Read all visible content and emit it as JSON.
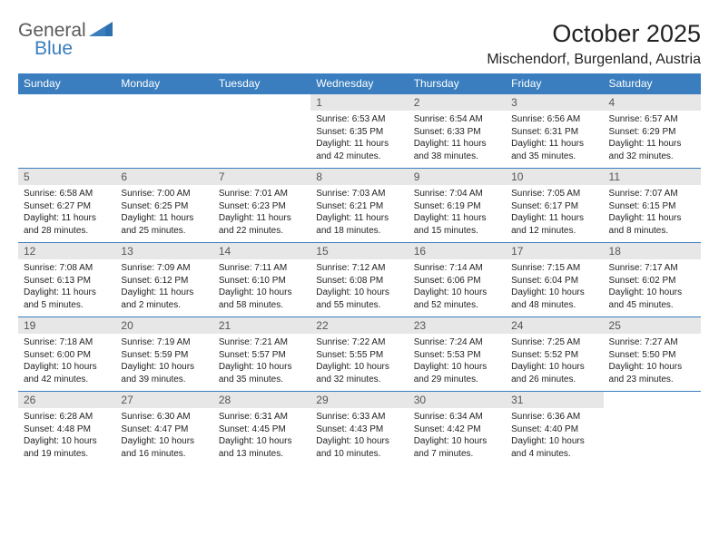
{
  "logo": {
    "general": "General",
    "blue": "Blue"
  },
  "title": "October 2025",
  "location": "Mischendorf, Burgenland, Austria",
  "colors": {
    "header_bg": "#3a7ebf",
    "header_text": "#ffffff",
    "daynum_bg": "#e7e7e7",
    "daynum_text": "#555555",
    "body_text": "#222222",
    "page_bg": "#ffffff"
  },
  "typography": {
    "title_fontsize": 27,
    "location_fontsize": 16,
    "weekday_fontsize": 12,
    "daynum_fontsize": 12,
    "cell_fontsize": 10
  },
  "weekdays": [
    "Sunday",
    "Monday",
    "Tuesday",
    "Wednesday",
    "Thursday",
    "Friday",
    "Saturday"
  ],
  "weeks": [
    {
      "nums": [
        "",
        "",
        "",
        "1",
        "2",
        "3",
        "4"
      ],
      "cells": [
        null,
        null,
        null,
        {
          "sunrise": "Sunrise: 6:53 AM",
          "sunset": "Sunset: 6:35 PM",
          "d1": "Daylight: 11 hours",
          "d2": "and 42 minutes."
        },
        {
          "sunrise": "Sunrise: 6:54 AM",
          "sunset": "Sunset: 6:33 PM",
          "d1": "Daylight: 11 hours",
          "d2": "and 38 minutes."
        },
        {
          "sunrise": "Sunrise: 6:56 AM",
          "sunset": "Sunset: 6:31 PM",
          "d1": "Daylight: 11 hours",
          "d2": "and 35 minutes."
        },
        {
          "sunrise": "Sunrise: 6:57 AM",
          "sunset": "Sunset: 6:29 PM",
          "d1": "Daylight: 11 hours",
          "d2": "and 32 minutes."
        }
      ]
    },
    {
      "nums": [
        "5",
        "6",
        "7",
        "8",
        "9",
        "10",
        "11"
      ],
      "cells": [
        {
          "sunrise": "Sunrise: 6:58 AM",
          "sunset": "Sunset: 6:27 PM",
          "d1": "Daylight: 11 hours",
          "d2": "and 28 minutes."
        },
        {
          "sunrise": "Sunrise: 7:00 AM",
          "sunset": "Sunset: 6:25 PM",
          "d1": "Daylight: 11 hours",
          "d2": "and 25 minutes."
        },
        {
          "sunrise": "Sunrise: 7:01 AM",
          "sunset": "Sunset: 6:23 PM",
          "d1": "Daylight: 11 hours",
          "d2": "and 22 minutes."
        },
        {
          "sunrise": "Sunrise: 7:03 AM",
          "sunset": "Sunset: 6:21 PM",
          "d1": "Daylight: 11 hours",
          "d2": "and 18 minutes."
        },
        {
          "sunrise": "Sunrise: 7:04 AM",
          "sunset": "Sunset: 6:19 PM",
          "d1": "Daylight: 11 hours",
          "d2": "and 15 minutes."
        },
        {
          "sunrise": "Sunrise: 7:05 AM",
          "sunset": "Sunset: 6:17 PM",
          "d1": "Daylight: 11 hours",
          "d2": "and 12 minutes."
        },
        {
          "sunrise": "Sunrise: 7:07 AM",
          "sunset": "Sunset: 6:15 PM",
          "d1": "Daylight: 11 hours",
          "d2": "and 8 minutes."
        }
      ]
    },
    {
      "nums": [
        "12",
        "13",
        "14",
        "15",
        "16",
        "17",
        "18"
      ],
      "cells": [
        {
          "sunrise": "Sunrise: 7:08 AM",
          "sunset": "Sunset: 6:13 PM",
          "d1": "Daylight: 11 hours",
          "d2": "and 5 minutes."
        },
        {
          "sunrise": "Sunrise: 7:09 AM",
          "sunset": "Sunset: 6:12 PM",
          "d1": "Daylight: 11 hours",
          "d2": "and 2 minutes."
        },
        {
          "sunrise": "Sunrise: 7:11 AM",
          "sunset": "Sunset: 6:10 PM",
          "d1": "Daylight: 10 hours",
          "d2": "and 58 minutes."
        },
        {
          "sunrise": "Sunrise: 7:12 AM",
          "sunset": "Sunset: 6:08 PM",
          "d1": "Daylight: 10 hours",
          "d2": "and 55 minutes."
        },
        {
          "sunrise": "Sunrise: 7:14 AM",
          "sunset": "Sunset: 6:06 PM",
          "d1": "Daylight: 10 hours",
          "d2": "and 52 minutes."
        },
        {
          "sunrise": "Sunrise: 7:15 AM",
          "sunset": "Sunset: 6:04 PM",
          "d1": "Daylight: 10 hours",
          "d2": "and 48 minutes."
        },
        {
          "sunrise": "Sunrise: 7:17 AM",
          "sunset": "Sunset: 6:02 PM",
          "d1": "Daylight: 10 hours",
          "d2": "and 45 minutes."
        }
      ]
    },
    {
      "nums": [
        "19",
        "20",
        "21",
        "22",
        "23",
        "24",
        "25"
      ],
      "cells": [
        {
          "sunrise": "Sunrise: 7:18 AM",
          "sunset": "Sunset: 6:00 PM",
          "d1": "Daylight: 10 hours",
          "d2": "and 42 minutes."
        },
        {
          "sunrise": "Sunrise: 7:19 AM",
          "sunset": "Sunset: 5:59 PM",
          "d1": "Daylight: 10 hours",
          "d2": "and 39 minutes."
        },
        {
          "sunrise": "Sunrise: 7:21 AM",
          "sunset": "Sunset: 5:57 PM",
          "d1": "Daylight: 10 hours",
          "d2": "and 35 minutes."
        },
        {
          "sunrise": "Sunrise: 7:22 AM",
          "sunset": "Sunset: 5:55 PM",
          "d1": "Daylight: 10 hours",
          "d2": "and 32 minutes."
        },
        {
          "sunrise": "Sunrise: 7:24 AM",
          "sunset": "Sunset: 5:53 PM",
          "d1": "Daylight: 10 hours",
          "d2": "and 29 minutes."
        },
        {
          "sunrise": "Sunrise: 7:25 AM",
          "sunset": "Sunset: 5:52 PM",
          "d1": "Daylight: 10 hours",
          "d2": "and 26 minutes."
        },
        {
          "sunrise": "Sunrise: 7:27 AM",
          "sunset": "Sunset: 5:50 PM",
          "d1": "Daylight: 10 hours",
          "d2": "and 23 minutes."
        }
      ]
    },
    {
      "nums": [
        "26",
        "27",
        "28",
        "29",
        "30",
        "31",
        ""
      ],
      "cells": [
        {
          "sunrise": "Sunrise: 6:28 AM",
          "sunset": "Sunset: 4:48 PM",
          "d1": "Daylight: 10 hours",
          "d2": "and 19 minutes."
        },
        {
          "sunrise": "Sunrise: 6:30 AM",
          "sunset": "Sunset: 4:47 PM",
          "d1": "Daylight: 10 hours",
          "d2": "and 16 minutes."
        },
        {
          "sunrise": "Sunrise: 6:31 AM",
          "sunset": "Sunset: 4:45 PM",
          "d1": "Daylight: 10 hours",
          "d2": "and 13 minutes."
        },
        {
          "sunrise": "Sunrise: 6:33 AM",
          "sunset": "Sunset: 4:43 PM",
          "d1": "Daylight: 10 hours",
          "d2": "and 10 minutes."
        },
        {
          "sunrise": "Sunrise: 6:34 AM",
          "sunset": "Sunset: 4:42 PM",
          "d1": "Daylight: 10 hours",
          "d2": "and 7 minutes."
        },
        {
          "sunrise": "Sunrise: 6:36 AM",
          "sunset": "Sunset: 4:40 PM",
          "d1": "Daylight: 10 hours",
          "d2": "and 4 minutes."
        },
        null
      ]
    }
  ]
}
